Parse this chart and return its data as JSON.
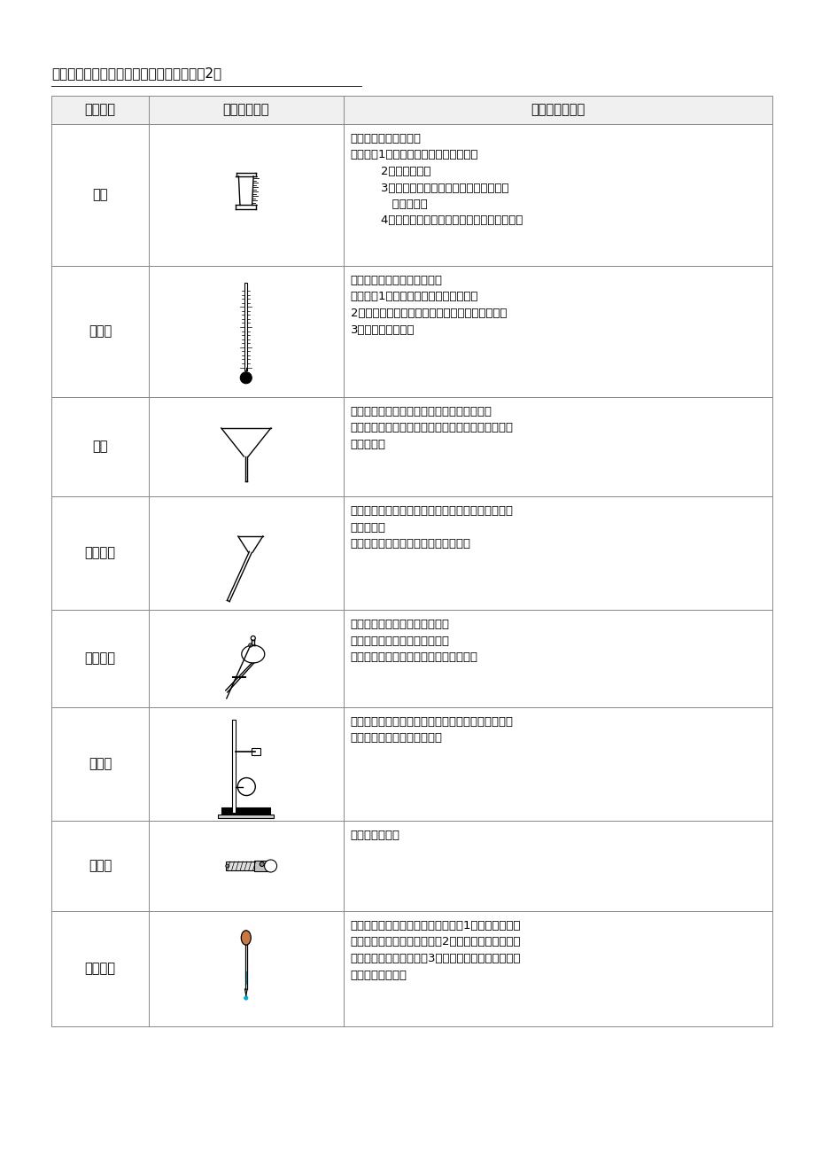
{
  "title": "初中化学实验常用仪器、用途及注意事项（2）",
  "headers": [
    "仪器名称",
    "形状（简图）",
    "用途及注意事项"
  ],
  "page_bg": "#ffffff",
  "border_color": "#aaaaaa",
  "rows": [
    {
      "name": "量筒",
      "desc": "用于称量液体的体积。\n【注意】1：使用时注意量程和分度值。\n        2：仰小俯大。\n        3：水平放置，读数时视线应与凹液面最\n           低处水平。\n        4：不能加热、配制溶液，不能做反应容器。"
    },
    {
      "name": "温度计",
      "desc": "用于测量液体或气体的温度。\n【注意】1：注意选择好量程和分度值。\n2：应在液体中读数。读数时视线应与示数水平。\n3：不能用于搅拌。"
    },
    {
      "name": "漏斗",
      "desc": "用于过滤和向小口径容器内注入液体的仪器。\n【注意】不能加热，使用时应与滤纸相匹配。（详见\n其他章节）"
    },
    {
      "name": "长颈漏斗",
      "desc": "用于装置反应器的漏斗。具有添加液体方便，能防止\n气体逸出。\n【注意】使用时末端应插入液面以下。"
    },
    {
      "name": "分液漏斗",
      "desc": "用于分离和萃取不相容的液体。\n【注意】活塞能控制气体逸出。\n不需要把分液漏斗的末端插入液面以下。"
    },
    {
      "name": "铁架台",
      "desc": "用于夹持和固定各种仪器。附有铁圈和铁夹，铁夹内\n衬有绒布或橡皮，松紧适度。"
    },
    {
      "name": "试管夹",
      "desc": "用于夹持试管。"
    },
    {
      "name": "胶头滴管",
      "desc": "用于滴加或吸取少量液体。【注意】1：吸取液体时先\n排净空气。不可平放和倒置。2：滴入时，悬空竖直在\n容器正上方，不能伸入。3：用完后应放在滴瓶内，应\n用清水冲洗干净。"
    }
  ]
}
